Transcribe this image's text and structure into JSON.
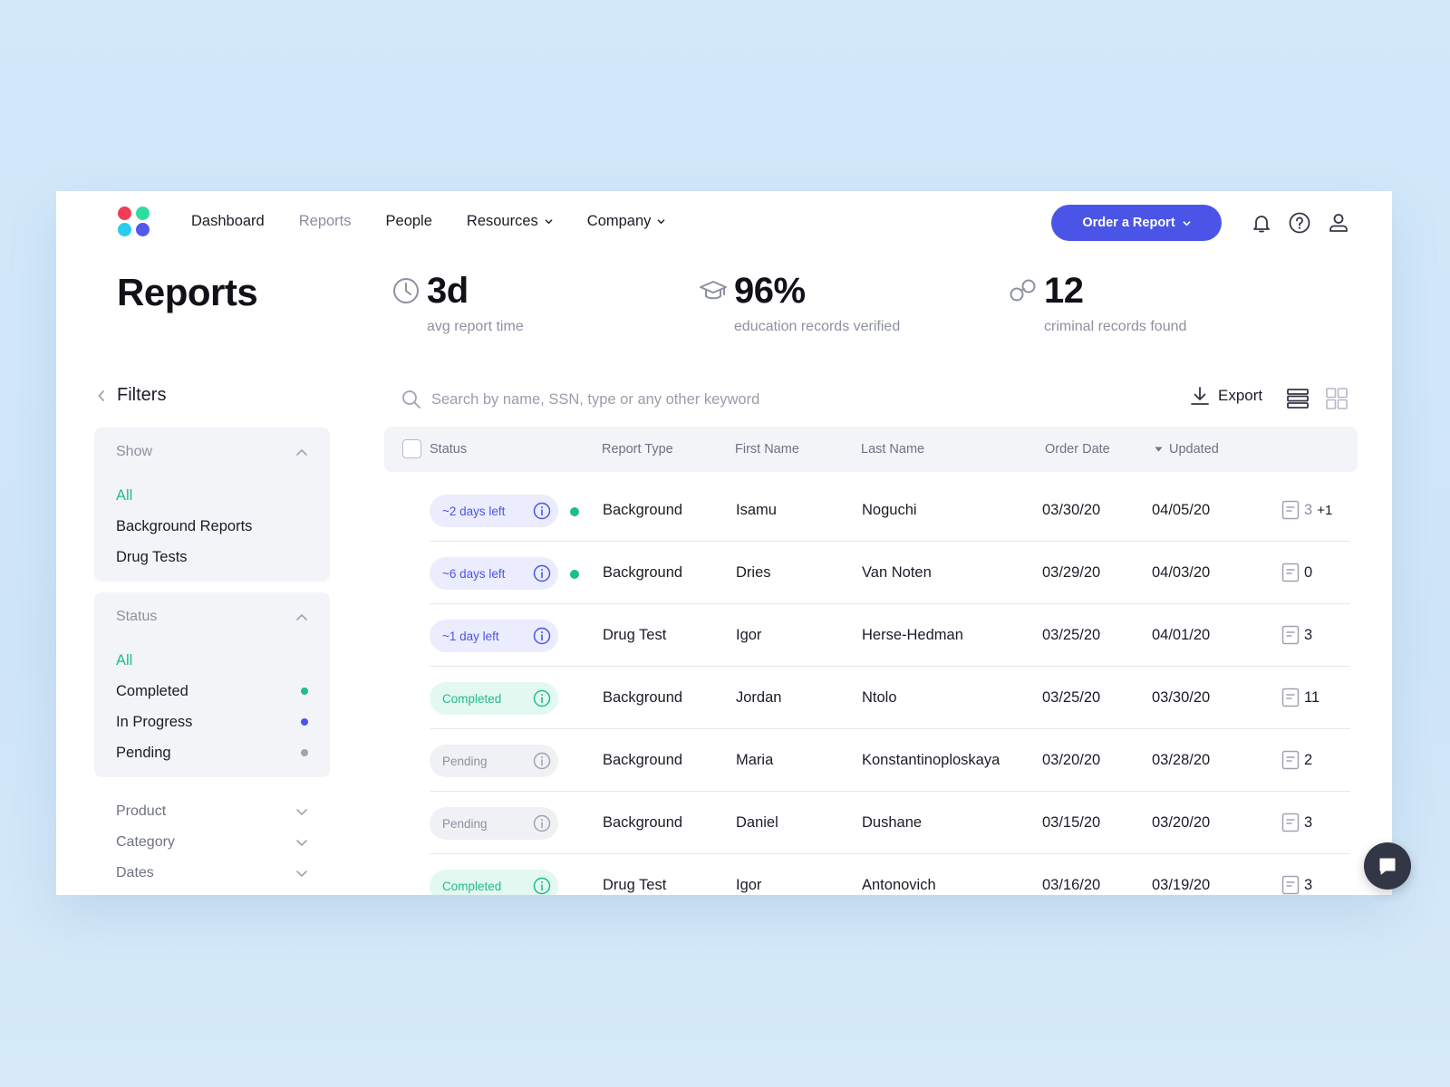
{
  "nav": {
    "items": [
      {
        "label": "Dashboard",
        "active": false,
        "dropdown": false
      },
      {
        "label": "Reports",
        "active": true,
        "dropdown": false
      },
      {
        "label": "People",
        "active": false,
        "dropdown": false
      },
      {
        "label": "Resources",
        "active": false,
        "dropdown": true
      },
      {
        "label": "Company",
        "active": false,
        "dropdown": true
      }
    ],
    "order_button": "Order a Report",
    "icons": [
      "bell-icon",
      "help-icon",
      "user-icon"
    ]
  },
  "page": {
    "title": "Reports"
  },
  "stats": [
    {
      "icon": "clock-icon",
      "value": "3d",
      "label": "avg report time"
    },
    {
      "icon": "graduation-cap-icon",
      "value": "96%",
      "label": "education records verified"
    },
    {
      "icon": "handcuffs-icon",
      "value": "12",
      "label": "criminal records found"
    }
  ],
  "filters": {
    "title": "Filters",
    "show": {
      "title": "Show",
      "options": [
        {
          "label": "All",
          "selected": true
        },
        {
          "label": "Background Reports",
          "selected": false
        },
        {
          "label": "Drug Tests",
          "selected": false
        }
      ]
    },
    "status": {
      "title": "Status",
      "options": [
        {
          "label": "All",
          "selected": true,
          "dot": null
        },
        {
          "label": "Completed",
          "selected": false,
          "dot": "#1ebd8c"
        },
        {
          "label": "In Progress",
          "selected": false,
          "dot": "#4a55e8"
        },
        {
          "label": "Pending",
          "selected": false,
          "dot": "#a0a3b0"
        }
      ]
    },
    "collapsed": [
      "Product",
      "Category",
      "Dates"
    ]
  },
  "toolbar": {
    "search_placeholder": "Search by name, SSN, type or any other keyword",
    "export_label": "Export"
  },
  "table": {
    "headers": {
      "status": "Status",
      "report_type": "Report Type",
      "first_name": "First Name",
      "last_name": "Last Name",
      "order_date": "Order Date",
      "updated": "Updated"
    },
    "rows": [
      {
        "status": "~2 days left",
        "kind": "progress",
        "live": true,
        "report_type": "Background",
        "first_name": "Isamu",
        "last_name": "Noguchi",
        "order_date": "03/30/20",
        "updated": "04/05/20",
        "docs": "3",
        "docs_extra": "+1"
      },
      {
        "status": "~6 days left",
        "kind": "progress",
        "live": true,
        "report_type": "Background",
        "first_name": "Dries",
        "last_name": "Van Noten",
        "order_date": "03/29/20",
        "updated": "04/03/20",
        "docs": "0",
        "docs_extra": ""
      },
      {
        "status": "~1 day left",
        "kind": "progress",
        "live": false,
        "report_type": "Drug Test",
        "first_name": "Igor",
        "last_name": "Herse-Hedman",
        "order_date": "03/25/20",
        "updated": "04/01/20",
        "docs": "3",
        "docs_extra": ""
      },
      {
        "status": "Completed",
        "kind": "completed",
        "live": false,
        "report_type": "Background",
        "first_name": "Jordan",
        "last_name": "Ntolo",
        "order_date": "03/25/20",
        "updated": "03/30/20",
        "docs": "11",
        "docs_extra": ""
      },
      {
        "status": "Pending",
        "kind": "pending",
        "live": false,
        "report_type": "Background",
        "first_name": "Maria",
        "last_name": "Konstantinoploskaya",
        "order_date": "03/20/20",
        "updated": "03/28/20",
        "docs": "2",
        "docs_extra": ""
      },
      {
        "status": "Pending",
        "kind": "pending",
        "live": false,
        "report_type": "Background",
        "first_name": "Daniel",
        "last_name": "Dushane",
        "order_date": "03/15/20",
        "updated": "03/20/20",
        "docs": "3",
        "docs_extra": ""
      },
      {
        "status": "Completed",
        "kind": "completed",
        "live": false,
        "report_type": "Drug Test",
        "first_name": "Igor",
        "last_name": "Antonovich",
        "order_date": "03/16/20",
        "updated": "03/19/20",
        "docs": "3",
        "docs_extra": ""
      }
    ]
  },
  "colors": {
    "accent": "#4a55e8",
    "completed": "#1ebd8c",
    "pending": "#a0a3b0",
    "logo": [
      "#f23b56",
      "#2fdc9f",
      "#29ccec",
      "#5259ea"
    ]
  }
}
